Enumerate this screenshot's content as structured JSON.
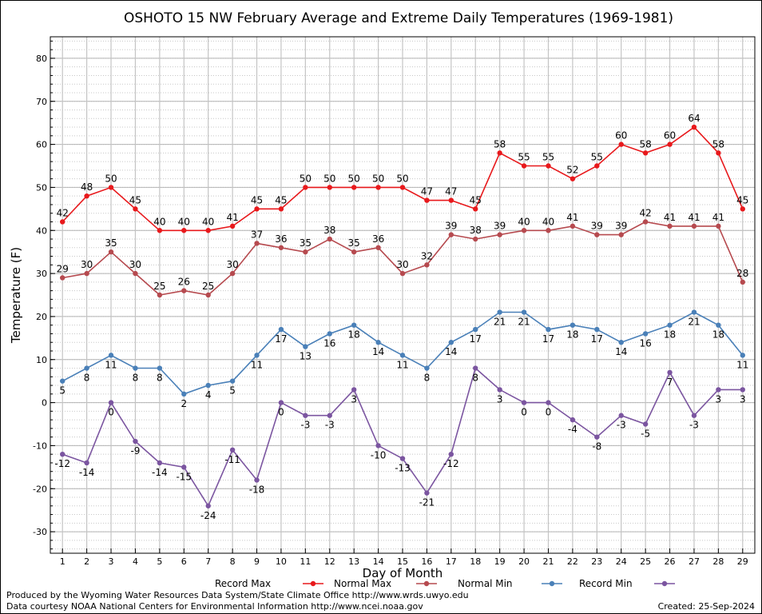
{
  "chart_data": {
    "type": "line",
    "title": "OSHOTO 15 NW February Average and Extreme Daily Temperatures (1969-1981)",
    "xlabel": "Day of Month",
    "ylabel": "Temperature (F)",
    "ylim": [
      -35,
      85
    ],
    "yticks": [
      -30,
      -20,
      -10,
      0,
      10,
      20,
      30,
      40,
      50,
      60,
      70,
      80
    ],
    "x": [
      1,
      2,
      3,
      4,
      5,
      6,
      7,
      8,
      9,
      10,
      11,
      12,
      13,
      14,
      15,
      16,
      17,
      18,
      19,
      20,
      21,
      22,
      23,
      24,
      25,
      26,
      27,
      28,
      29
    ],
    "grid": true,
    "legend_position": "bottom",
    "series": [
      {
        "name": "Record Max",
        "color": "#e8191c",
        "values": [
          42,
          48,
          50,
          45,
          40,
          40,
          40,
          41,
          45,
          45,
          50,
          50,
          50,
          50,
          50,
          47,
          47,
          45,
          58,
          55,
          55,
          52,
          55,
          60,
          58,
          60,
          64,
          58,
          45
        ]
      },
      {
        "name": "Normal Max",
        "color": "#b64a4f",
        "values": [
          29,
          30,
          35,
          30,
          25,
          26,
          25,
          30,
          37,
          36,
          35,
          38,
          35,
          36,
          30,
          32,
          39,
          38,
          39,
          40,
          40,
          41,
          39,
          39,
          42,
          41,
          41,
          41,
          28
        ]
      },
      {
        "name": "Normal Min",
        "color": "#4a80b8",
        "values": [
          5,
          8,
          11,
          8,
          8,
          2,
          4,
          5,
          11,
          17,
          13,
          16,
          18,
          14,
          11,
          8,
          14,
          17,
          21,
          21,
          17,
          18,
          17,
          14,
          16,
          18,
          21,
          18,
          11
        ]
      },
      {
        "name": "Record Min",
        "color": "#7b55a0",
        "values": [
          -12,
          -14,
          0,
          -9,
          -14,
          -15,
          -24,
          -11,
          -18,
          0,
          -3,
          -3,
          3,
          -10,
          -13,
          -21,
          -12,
          8,
          3,
          0,
          0,
          -4,
          -8,
          -3,
          -5,
          7,
          -3,
          3,
          3
        ]
      }
    ]
  },
  "footer": {
    "produced_by": "Produced by the Wyoming Water Resources Data System/State Climate Office http://www.wrds.uwyo.edu",
    "courtesy": "Data courtesy NOAA National Centers for Environmental Information http://www.ncei.noaa.gov",
    "created": "Created:  25-Sep-2024"
  }
}
